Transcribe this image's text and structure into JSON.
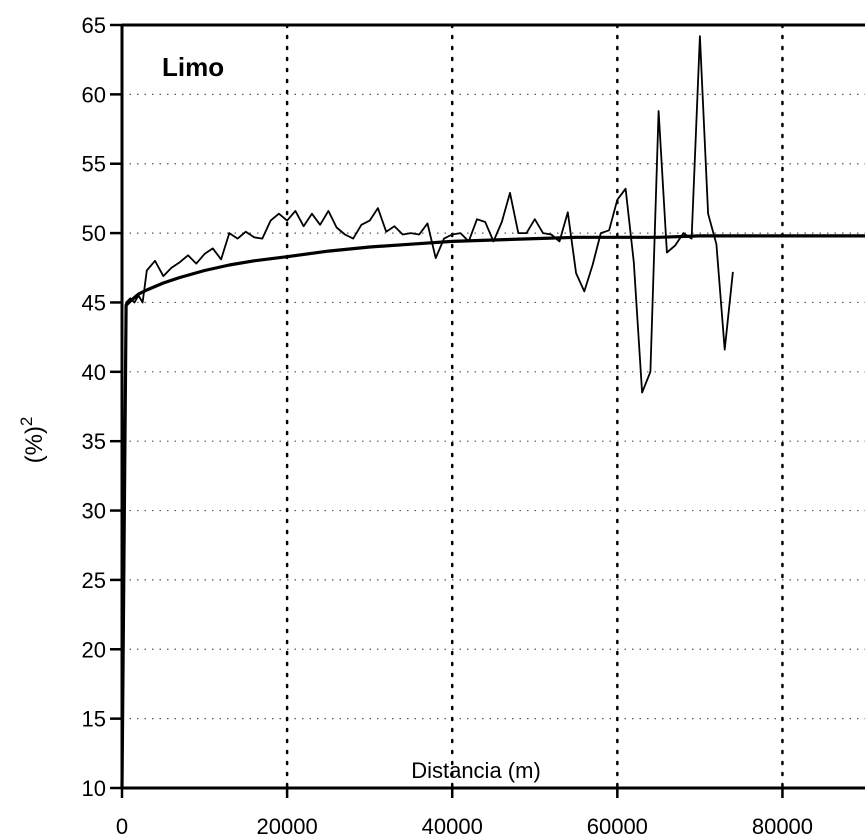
{
  "chart_data": {
    "type": "line",
    "title": "Limo",
    "xlabel": "Distancia (m)",
    "ylabel": "(%)",
    "ylabel_superscript": "2",
    "xlim": [
      0,
      90000
    ],
    "ylim": [
      10,
      65
    ],
    "x_ticks": [
      0,
      20000,
      40000,
      60000,
      80000
    ],
    "y_ticks": [
      10,
      15,
      20,
      25,
      30,
      35,
      40,
      45,
      50,
      55,
      60,
      65
    ],
    "grid": true,
    "line_color": "#000000",
    "series": [
      {
        "x": [
          0,
          500,
          1000,
          1500,
          2000,
          2500,
          3000,
          4000,
          5000,
          6000,
          7000,
          8000,
          9000,
          10000,
          11000,
          12000,
          13000,
          14000,
          15000,
          16000,
          17000,
          18000,
          19000,
          20000,
          21000,
          22000,
          23000,
          24000,
          25000,
          26000,
          27000,
          28000,
          29000,
          30000,
          31000,
          32000,
          33000,
          34000,
          35000,
          36000,
          37000,
          38000,
          39000,
          40000,
          41000,
          42000,
          43000,
          44000,
          45000,
          46000,
          47000,
          48000,
          49000,
          50000,
          51000,
          52000,
          53000,
          54000,
          55000,
          56000,
          57000,
          58000,
          59000,
          60000,
          61000,
          62000,
          63000,
          64000,
          65000,
          66000,
          67000,
          68000,
          69000,
          70000,
          71000,
          72000,
          73000,
          74000
        ],
        "values": [
          10,
          45,
          45.3,
          45.0,
          45.5,
          45.0,
          47.3,
          48.0,
          46.9,
          47.5,
          47.9,
          48.4,
          47.8,
          48.5,
          48.9,
          48.1,
          50.0,
          49.6,
          50.1,
          49.7,
          49.6,
          50.9,
          51.4,
          50.9,
          51.6,
          50.5,
          51.4,
          50.6,
          51.6,
          50.4,
          49.9,
          49.6,
          50.6,
          50.9,
          51.8,
          50.1,
          50.5,
          49.9,
          50.0,
          49.9,
          50.7,
          48.2,
          49.6,
          49.9,
          50.0,
          49.4,
          51.0,
          50.8,
          49.4,
          50.8,
          52.9,
          50.0,
          50.0,
          51.0,
          50.0,
          49.9,
          49.4,
          51.5,
          47.1,
          45.8,
          47.7,
          50.0,
          50.2,
          52.4,
          53.2,
          47.9,
          38.5,
          40.0,
          58.8,
          48.6,
          49.1,
          50.0,
          49.6,
          64.2,
          51.4,
          49.2,
          41.6,
          47.2
        ]
      },
      {
        "x": [
          0,
          500,
          1000,
          2000,
          3000,
          5000,
          7000,
          10000,
          13000,
          16000,
          20000,
          25000,
          30000,
          35000,
          40000,
          45000,
          50000,
          55000,
          60000,
          65000,
          70000,
          75000,
          80000,
          85000,
          90000
        ],
        "values": [
          10,
          44.8,
          45.1,
          45.6,
          45.9,
          46.4,
          46.8,
          47.3,
          47.7,
          48.0,
          48.3,
          48.7,
          49.0,
          49.2,
          49.4,
          49.5,
          49.6,
          49.7,
          49.7,
          49.7,
          49.8,
          49.8,
          49.8,
          49.8,
          49.8
        ]
      }
    ]
  }
}
